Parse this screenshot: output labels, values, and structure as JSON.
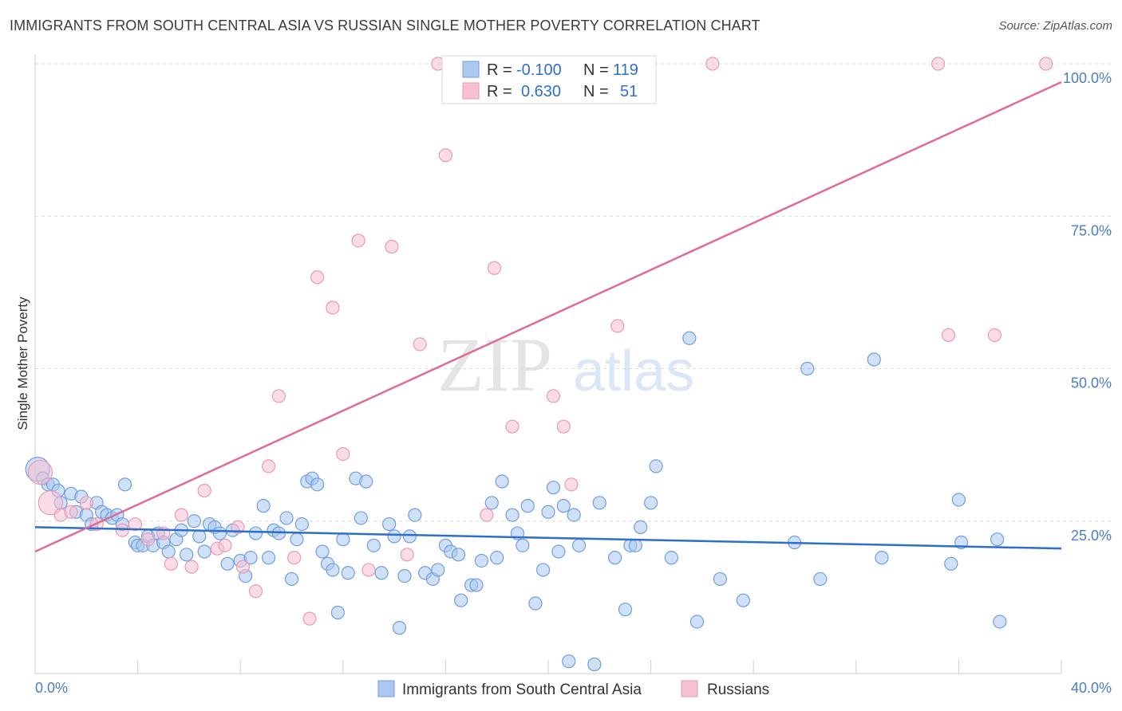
{
  "title": "IMMIGRANTS FROM SOUTH CENTRAL ASIA VS RUSSIAN SINGLE MOTHER POVERTY CORRELATION CHART",
  "source": "Source: ZipAtlas.com",
  "watermark": {
    "zip": "ZIP",
    "atlas": "atlas"
  },
  "colors": {
    "blue_fill": "#aac8f0",
    "blue_stroke": "#6f9ee0",
    "blue_line": "#2e6fcc",
    "pink_fill": "#f6c0d2",
    "pink_stroke": "#e99ab5",
    "pink_line": "#e06b96",
    "tick_text": "#4a7cc7",
    "grid": "#dcdcdc"
  },
  "legend_top": [
    {
      "r_label": "R =",
      "r_value": "-0.100",
      "n_label": "N =",
      "n_value": "119"
    },
    {
      "r_label": "R =",
      "r_value": "0.630",
      "n_label": "N =",
      "n_value": "51"
    }
  ],
  "chart_data": {
    "type": "scatter",
    "title": "IMMIGRANTS FROM SOUTH CENTRAL ASIA VS RUSSIAN SINGLE MOTHER POVERTY CORRELATION CHART",
    "xlabel": "",
    "ylabel": "Single Mother Poverty",
    "xlim": [
      0,
      40
    ],
    "ylim": [
      0,
      100
    ],
    "x_tick_labels": [
      "0.0%",
      "40.0%"
    ],
    "y_ticks": [
      25,
      50,
      75,
      100
    ],
    "y_tick_labels": [
      "25.0%",
      "50.0%",
      "75.0%",
      "100.0%"
    ],
    "grid": true,
    "legend_position": "top-center and bottom",
    "series": [
      {
        "name": "Immigrants from South Central Asia",
        "color": "#6f9ee0",
        "trend": {
          "x": [
            0,
            40
          ],
          "y": [
            24.0,
            20.5
          ]
        },
        "points": [
          [
            0.1,
            33.5
          ],
          [
            0.3,
            32
          ],
          [
            0.5,
            31
          ],
          [
            0.7,
            31
          ],
          [
            0.9,
            30
          ],
          [
            1.0,
            28
          ],
          [
            1.4,
            29.5
          ],
          [
            1.6,
            26.5
          ],
          [
            1.8,
            29
          ],
          [
            2.0,
            26
          ],
          [
            2.2,
            24.5
          ],
          [
            2.4,
            28
          ],
          [
            2.6,
            26.5
          ],
          [
            2.8,
            26
          ],
          [
            3.0,
            25.5
          ],
          [
            3.2,
            26
          ],
          [
            3.4,
            24.5
          ],
          [
            3.5,
            31
          ],
          [
            3.9,
            21.5
          ],
          [
            4.0,
            21
          ],
          [
            4.2,
            21
          ],
          [
            4.4,
            22.5
          ],
          [
            4.6,
            21
          ],
          [
            4.8,
            23
          ],
          [
            5.0,
            21.5
          ],
          [
            5.2,
            20
          ],
          [
            5.5,
            22
          ],
          [
            5.7,
            23.5
          ],
          [
            5.9,
            19.5
          ],
          [
            6.2,
            25
          ],
          [
            6.4,
            22.5
          ],
          [
            6.6,
            20
          ],
          [
            6.8,
            24.5
          ],
          [
            7.0,
            24
          ],
          [
            7.2,
            23
          ],
          [
            7.5,
            18
          ],
          [
            7.7,
            23.5
          ],
          [
            8.0,
            18.5
          ],
          [
            8.2,
            16
          ],
          [
            8.4,
            19
          ],
          [
            8.6,
            23
          ],
          [
            8.9,
            27.5
          ],
          [
            9.1,
            19
          ],
          [
            9.3,
            23.5
          ],
          [
            9.5,
            23
          ],
          [
            9.8,
            25.5
          ],
          [
            10.0,
            15.5
          ],
          [
            10.2,
            22
          ],
          [
            10.4,
            24.5
          ],
          [
            10.6,
            31.5
          ],
          [
            10.8,
            32
          ],
          [
            11.0,
            31
          ],
          [
            11.2,
            20
          ],
          [
            11.4,
            18
          ],
          [
            11.6,
            17
          ],
          [
            11.8,
            10
          ],
          [
            12.0,
            22
          ],
          [
            12.2,
            16.5
          ],
          [
            12.5,
            32
          ],
          [
            12.7,
            25.5
          ],
          [
            12.9,
            31.5
          ],
          [
            13.2,
            21
          ],
          [
            13.5,
            16.5
          ],
          [
            13.8,
            24.5
          ],
          [
            14.0,
            22.5
          ],
          [
            14.2,
            7.5
          ],
          [
            14.4,
            16
          ],
          [
            14.6,
            22.5
          ],
          [
            14.8,
            26
          ],
          [
            15.2,
            16.5
          ],
          [
            15.5,
            15.5
          ],
          [
            15.7,
            17
          ],
          [
            16.0,
            21
          ],
          [
            16.2,
            20
          ],
          [
            16.5,
            19.5
          ],
          [
            16.6,
            12
          ],
          [
            17.0,
            14.5
          ],
          [
            17.2,
            14.5
          ],
          [
            17.4,
            18.5
          ],
          [
            17.8,
            28
          ],
          [
            18.0,
            19
          ],
          [
            18.2,
            31.5
          ],
          [
            18.6,
            26
          ],
          [
            18.8,
            23
          ],
          [
            19.0,
            21
          ],
          [
            19.2,
            27.5
          ],
          [
            19.5,
            11.5
          ],
          [
            19.8,
            17
          ],
          [
            20.0,
            26.5
          ],
          [
            20.2,
            30.5
          ],
          [
            20.4,
            20
          ],
          [
            20.6,
            27.5
          ],
          [
            20.8,
            2
          ],
          [
            21.0,
            26
          ],
          [
            21.2,
            21
          ],
          [
            21.8,
            1.5
          ],
          [
            22.0,
            28
          ],
          [
            22.6,
            19
          ],
          [
            23.0,
            10.5
          ],
          [
            23.2,
            21
          ],
          [
            23.4,
            21
          ],
          [
            23.6,
            24
          ],
          [
            24.0,
            28
          ],
          [
            24.2,
            34
          ],
          [
            24.8,
            19
          ],
          [
            25.5,
            55
          ],
          [
            25.8,
            8.5
          ],
          [
            26.7,
            15.5
          ],
          [
            27.6,
            12
          ],
          [
            29.6,
            21.5
          ],
          [
            30.1,
            50
          ],
          [
            30.6,
            15.5
          ],
          [
            32.7,
            51.5
          ],
          [
            33.0,
            19
          ],
          [
            35.7,
            18
          ],
          [
            36.0,
            28.5
          ],
          [
            36.1,
            21.5
          ],
          [
            37.5,
            22
          ],
          [
            37.6,
            8.5
          ]
        ]
      },
      {
        "name": "Russians",
        "color": "#e99ab5",
        "trend": {
          "x": [
            0,
            40
          ],
          "y": [
            20,
            97
          ]
        },
        "points": [
          [
            0.2,
            33
          ],
          [
            0.6,
            28
          ],
          [
            1.0,
            26
          ],
          [
            1.4,
            26.5
          ],
          [
            2.0,
            28
          ],
          [
            2.4,
            24.5
          ],
          [
            3.4,
            23.5
          ],
          [
            3.9,
            24.5
          ],
          [
            4.4,
            22
          ],
          [
            5.0,
            23
          ],
          [
            5.3,
            18
          ],
          [
            5.7,
            26
          ],
          [
            6.1,
            17.5
          ],
          [
            6.6,
            30
          ],
          [
            7.1,
            20.5
          ],
          [
            7.4,
            21
          ],
          [
            7.9,
            24
          ],
          [
            8.1,
            17.5
          ],
          [
            8.6,
            13.5
          ],
          [
            9.1,
            34
          ],
          [
            9.5,
            45.5
          ],
          [
            10.1,
            19
          ],
          [
            10.7,
            9
          ],
          [
            11.0,
            65
          ],
          [
            11.6,
            60
          ],
          [
            12.0,
            36
          ],
          [
            12.6,
            71
          ],
          [
            13.0,
            17
          ],
          [
            13.9,
            70
          ],
          [
            14.5,
            19.5
          ],
          [
            15.0,
            54
          ],
          [
            15.7,
            100
          ],
          [
            16.0,
            85
          ],
          [
            16.5,
            100
          ],
          [
            16.6,
            100
          ],
          [
            17.0,
            100
          ],
          [
            17.6,
            26
          ],
          [
            17.9,
            66.5
          ],
          [
            18.6,
            40.5
          ],
          [
            19.0,
            100
          ],
          [
            20.2,
            45.5
          ],
          [
            20.6,
            40.5
          ],
          [
            20.9,
            31
          ],
          [
            22.5,
            100
          ],
          [
            22.7,
            57
          ],
          [
            26.4,
            100
          ],
          [
            35.2,
            100
          ],
          [
            35.6,
            55.5
          ],
          [
            37.4,
            55.5
          ],
          [
            39.4,
            100
          ],
          [
            16.9,
            100
          ]
        ]
      }
    ]
  },
  "bottom_legend": [
    {
      "label": "Immigrants from South Central Asia"
    },
    {
      "label": "Russians"
    }
  ]
}
